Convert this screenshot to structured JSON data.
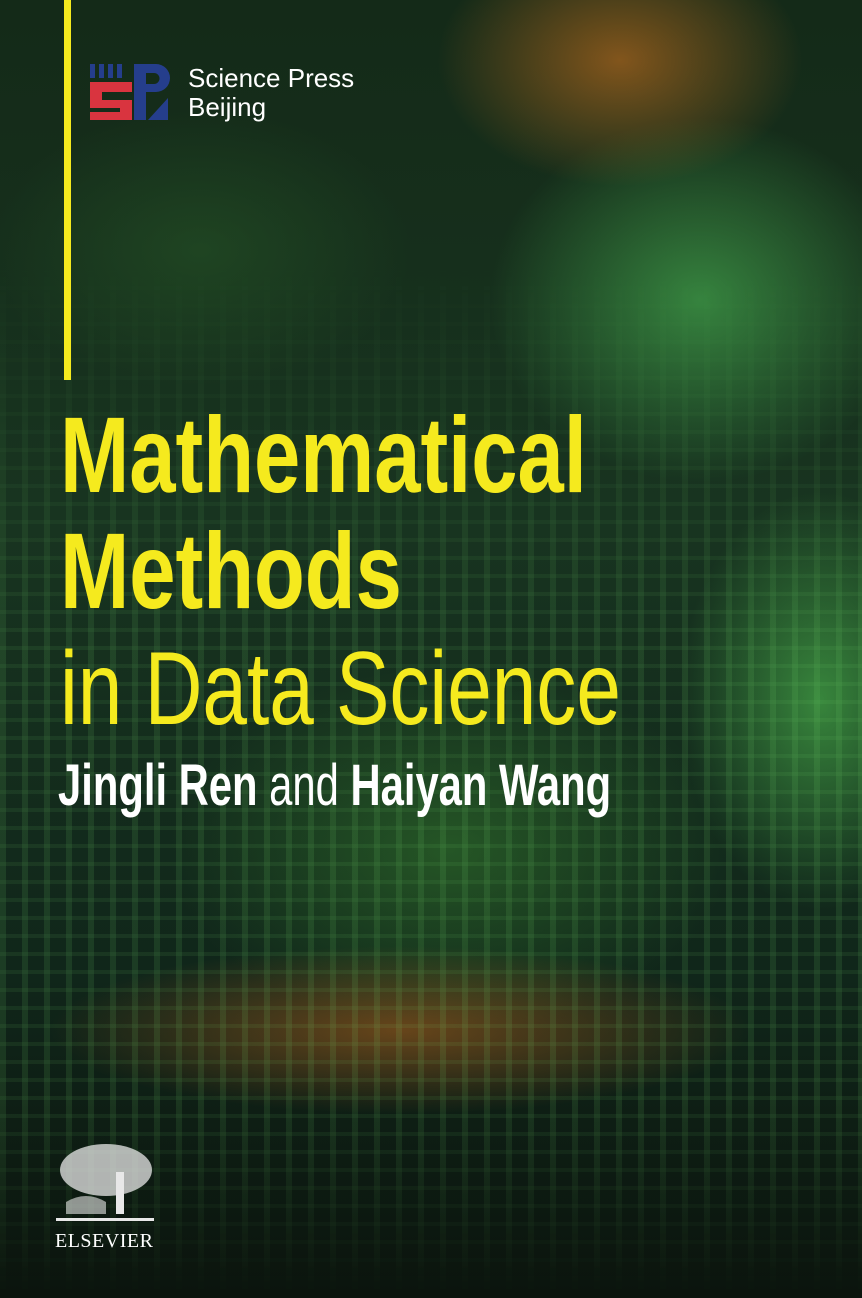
{
  "publisher": {
    "line1": "Science Press",
    "line2": "Beijing",
    "logo_letters": "SP",
    "logo_colors": {
      "red": "#d9343f",
      "blue": "#253e8c"
    }
  },
  "title": {
    "line1": "Mathematical",
    "line2": "Methods",
    "line3": "in Data Science",
    "color": "#f5ea1e"
  },
  "authors": {
    "author1": "Jingli Ren",
    "conjunction": "and",
    "author2": "Haiyan Wang"
  },
  "imprint": {
    "name": "ELSEVIER"
  }
}
